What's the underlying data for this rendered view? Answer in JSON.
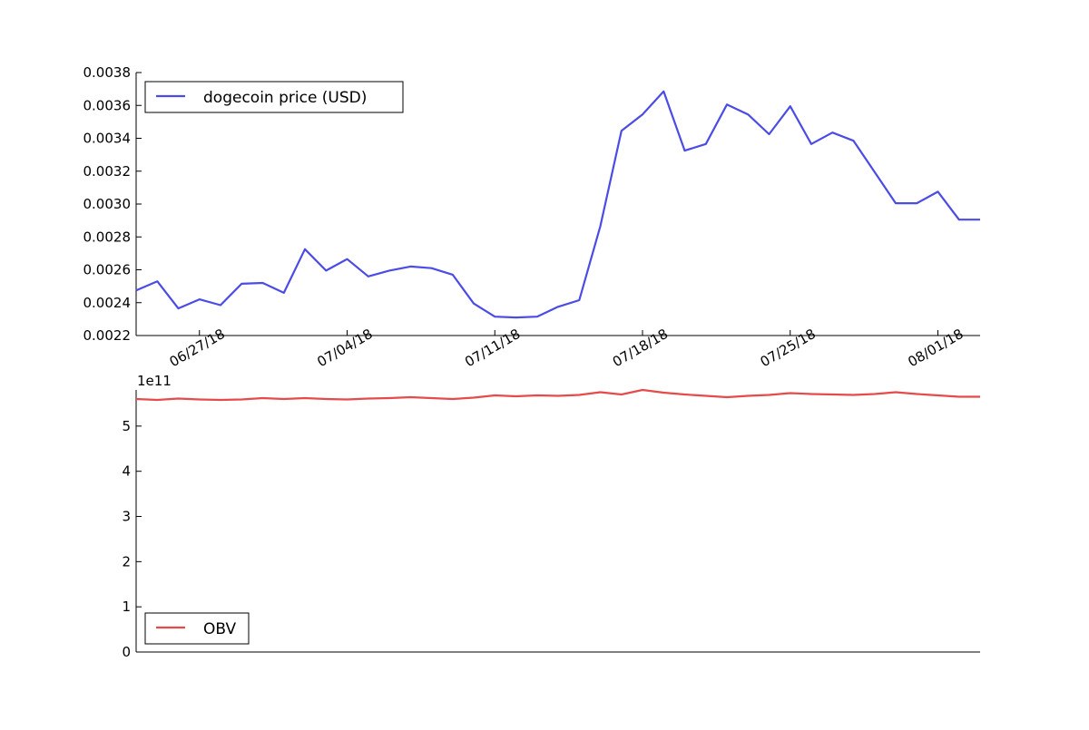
{
  "chart_data": [
    {
      "type": "line",
      "panel": "price",
      "x_dates": [
        "06/24/18",
        "06/25/18",
        "06/26/18",
        "06/27/18",
        "06/28/18",
        "06/29/18",
        "06/30/18",
        "07/01/18",
        "07/02/18",
        "07/03/18",
        "07/04/18",
        "07/05/18",
        "07/06/18",
        "07/07/18",
        "07/08/18",
        "07/09/18",
        "07/10/18",
        "07/11/18",
        "07/12/18",
        "07/13/18",
        "07/14/18",
        "07/15/18",
        "07/16/18",
        "07/17/18",
        "07/18/18",
        "07/19/18",
        "07/20/18",
        "07/21/18",
        "07/22/18",
        "07/23/18",
        "07/24/18",
        "07/25/18",
        "07/26/18",
        "07/27/18",
        "07/28/18",
        "07/29/18",
        "07/30/18",
        "07/31/18",
        "08/01/18",
        "08/02/18",
        "08/03/18"
      ],
      "series": [
        {
          "name": "dogecoin price (USD)",
          "color": "#4b4be6",
          "values": [
            0.002475,
            0.00253,
            0.002365,
            0.00242,
            0.002385,
            0.002515,
            0.00252,
            0.00246,
            0.002725,
            0.002595,
            0.002665,
            0.00256,
            0.002595,
            0.00262,
            0.00261,
            0.00257,
            0.002395,
            0.002315,
            0.00231,
            0.002315,
            0.002375,
            0.002415,
            0.002865,
            0.003445,
            0.003545,
            0.003685,
            0.003325,
            0.003365,
            0.003605,
            0.003545,
            0.003425,
            0.003595,
            0.003365,
            0.003435,
            0.003385,
            0.003195,
            0.003005,
            0.003005,
            0.003075,
            0.002905,
            0.002905
          ]
        }
      ],
      "ylim": [
        0.0022,
        0.0038
      ],
      "yticks": [
        "0.0022",
        "0.0024",
        "0.0026",
        "0.0028",
        "0.0030",
        "0.0032",
        "0.0034",
        "0.0036",
        "0.0038"
      ],
      "xtick_labels": [
        "06/27/18",
        "07/04/18",
        "07/11/18",
        "07/18/18",
        "07/25/18",
        "08/01/18"
      ],
      "legend_loc": "top-left",
      "xlabel": "",
      "ylabel": "",
      "title": ""
    },
    {
      "type": "line",
      "panel": "obv",
      "series": [
        {
          "name": "OBV",
          "color": "#e64b4b",
          "values": [
            5.6,
            5.58,
            5.61,
            5.59,
            5.58,
            5.59,
            5.62,
            5.6,
            5.62,
            5.6,
            5.59,
            5.61,
            5.62,
            5.64,
            5.62,
            5.6,
            5.63,
            5.68,
            5.66,
            5.68,
            5.67,
            5.69,
            5.75,
            5.7,
            5.8,
            5.74,
            5.7,
            5.67,
            5.64,
            5.67,
            5.69,
            5.73,
            5.71,
            5.7,
            5.69,
            5.71,
            5.75,
            5.71,
            5.68,
            5.65,
            5.65
          ]
        }
      ],
      "ylim": [
        0,
        5.8
      ],
      "yticks": [
        "0",
        "1",
        "2",
        "3",
        "4",
        "5"
      ],
      "offset_label": "1e11",
      "legend_loc": "bottom-left",
      "xlabel": "",
      "ylabel": "",
      "title": ""
    }
  ]
}
